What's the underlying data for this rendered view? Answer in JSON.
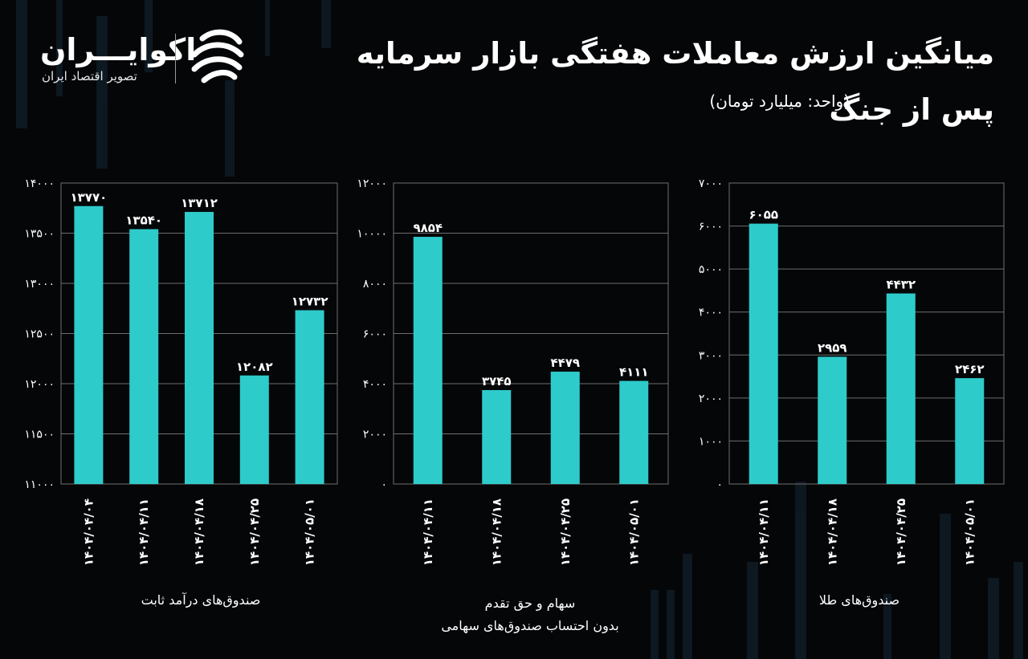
{
  "header": {
    "title_line1": "میانگین ارزش معاملات هفتگی بازار سرمایه",
    "title_line2": "پس از جنگ",
    "unit": "(واحد: میلیارد تومان)"
  },
  "brand": {
    "name": "اکوایـــران",
    "tagline": "تصویر اقتصاد ایران",
    "logo_icon": "ecoiran-logo-icon"
  },
  "colors": {
    "bar": "#2ecbcb",
    "background": "#050608",
    "grid": "#6e6e6e",
    "text": "#ffffff"
  },
  "chart_data": [
    {
      "type": "bar",
      "title": "صندوق‌های درآمد ثابت",
      "subtitle": "",
      "categories": [
        "۱۴۰۴/۰۴/۰۴",
        "۱۴۰۴/۰۴/۱۱",
        "۱۴۰۴/۰۴/۱۸",
        "۱۴۰۴/۰۴/۲۵",
        "۱۴۰۴/۰۵/۰۱"
      ],
      "values": [
        13770,
        13540,
        13712,
        12082,
        12732
      ],
      "value_labels": [
        "۱۳۷۷۰",
        "۱۳۵۴۰",
        "۱۳۷۱۲",
        "۱۲۰۸۲",
        "۱۲۷۳۲"
      ],
      "ylim": [
        11000,
        14000
      ],
      "yticks": [
        11000,
        11500,
        12000,
        12500,
        13000,
        13500,
        14000
      ],
      "ytick_labels": [
        "۱۱۰۰۰",
        "۱۱۵۰۰",
        "۱۲۰۰۰",
        "۱۲۵۰۰",
        "۱۳۰۰۰",
        "۱۳۵۰۰",
        "۱۴۰۰۰"
      ],
      "grid": true
    },
    {
      "type": "bar",
      "title": "سهام و حق تقدم",
      "subtitle": "بدون احتساب صندوق‌های سهامی",
      "categories": [
        "۱۴۰۴/۰۴/۱۱",
        "۱۴۰۴/۰۴/۱۸",
        "۱۴۰۴/۰۴/۲۵",
        "۱۴۰۴/۰۵/۰۱"
      ],
      "values": [
        9854,
        3745,
        4479,
        4111
      ],
      "value_labels": [
        "۹۸۵۴",
        "۳۷۴۵",
        "۴۴۷۹",
        "۴۱۱۱"
      ],
      "ylim": [
        0,
        12000
      ],
      "yticks": [
        0,
        2000,
        4000,
        6000,
        8000,
        10000,
        12000
      ],
      "ytick_labels": [
        "۰",
        "۲۰۰۰",
        "۴۰۰۰",
        "۶۰۰۰",
        "۸۰۰۰",
        "۱۰۰۰۰",
        "۱۲۰۰۰"
      ],
      "grid": true
    },
    {
      "type": "bar",
      "title": "صندوق‌های طلا",
      "subtitle": "",
      "categories": [
        "۱۴۰۴/۰۴/۱۱",
        "۱۴۰۴/۰۴/۱۸",
        "۱۴۰۴/۰۴/۲۵",
        "۱۴۰۴/۰۵/۰۱"
      ],
      "values": [
        6055,
        2959,
        4432,
        2462
      ],
      "value_labels": [
        "۶۰۵۵",
        "۲۹۵۹",
        "۴۴۳۲",
        "۲۴۶۲"
      ],
      "ylim": [
        0,
        7000
      ],
      "yticks": [
        0,
        1000,
        2000,
        3000,
        4000,
        5000,
        6000,
        7000
      ],
      "ytick_labels": [
        "۰",
        "۱۰۰۰",
        "۲۰۰۰",
        "۳۰۰۰",
        "۴۰۰۰",
        "۵۰۰۰",
        "۶۰۰۰",
        "۷۰۰۰"
      ],
      "grid": true
    }
  ]
}
